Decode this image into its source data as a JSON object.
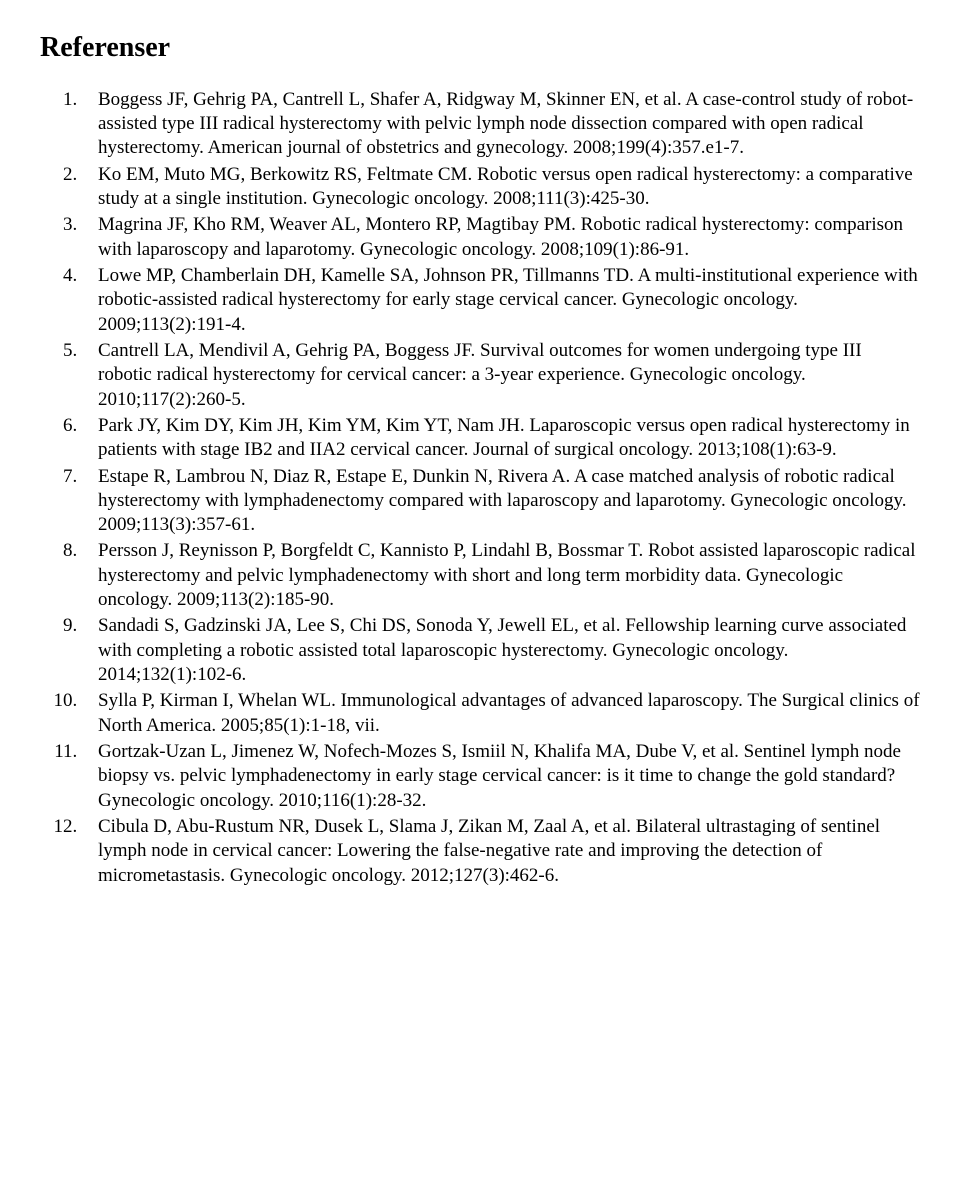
{
  "title": "Referenser",
  "references": [
    "Boggess JF, Gehrig PA, Cantrell L, Shafer A, Ridgway M, Skinner EN, et al. A case-control study of robot-assisted type III radical hysterectomy with pelvic lymph node dissection compared with open radical hysterectomy. American journal of obstetrics and gynecology. 2008;199(4):357.e1-7.",
    "Ko EM, Muto MG, Berkowitz RS, Feltmate CM. Robotic versus open radical hysterectomy: a comparative study at a single institution. Gynecologic oncology. 2008;111(3):425-30.",
    "Magrina JF, Kho RM, Weaver AL, Montero RP, Magtibay PM. Robotic radical hysterectomy: comparison with laparoscopy and laparotomy. Gynecologic oncology. 2008;109(1):86-91.",
    "Lowe MP, Chamberlain DH, Kamelle SA, Johnson PR, Tillmanns TD. A multi-institutional experience with robotic-assisted radical hysterectomy for early stage cervical cancer. Gynecologic oncology. 2009;113(2):191-4.",
    "Cantrell LA, Mendivil A, Gehrig PA, Boggess JF. Survival outcomes for women undergoing type III robotic radical hysterectomy for cervical cancer: a 3-year experience. Gynecologic oncology. 2010;117(2):260-5.",
    "Park JY, Kim DY, Kim JH, Kim YM, Kim YT, Nam JH. Laparoscopic versus open radical hysterectomy in patients with stage IB2 and IIA2 cervical cancer. Journal of surgical oncology. 2013;108(1):63-9.",
    "Estape R, Lambrou N, Diaz R, Estape E, Dunkin N, Rivera A. A case matched analysis of robotic radical hysterectomy with lymphadenectomy compared with laparoscopy and laparotomy. Gynecologic oncology. 2009;113(3):357-61.",
    "Persson J, Reynisson P, Borgfeldt C, Kannisto P, Lindahl B, Bossmar T. Robot assisted laparoscopic radical hysterectomy and pelvic lymphadenectomy with short and long term morbidity data. Gynecologic oncology. 2009;113(2):185-90.",
    "Sandadi S, Gadzinski JA, Lee S, Chi DS, Sonoda Y, Jewell EL, et al. Fellowship learning curve associated with completing a robotic assisted total laparoscopic hysterectomy. Gynecologic oncology. 2014;132(1):102-6.",
    "Sylla P, Kirman I, Whelan WL. Immunological advantages of advanced laparoscopy. The Surgical clinics of North America. 2005;85(1):1-18, vii.",
    "Gortzak-Uzan L, Jimenez W, Nofech-Mozes S, Ismiil N, Khalifa MA, Dube V, et al. Sentinel lymph node biopsy vs. pelvic lymphadenectomy in early stage cervical cancer: is it time to change the gold standard? Gynecologic oncology. 2010;116(1):28-32.",
    "Cibula D, Abu-Rustum NR, Dusek L, Slama J, Zikan M, Zaal A, et al. Bilateral ultrastaging of sentinel lymph node in cervical cancer: Lowering the false-negative rate and improving the detection of micrometastasis. Gynecologic oncology. 2012;127(3):462-6."
  ]
}
